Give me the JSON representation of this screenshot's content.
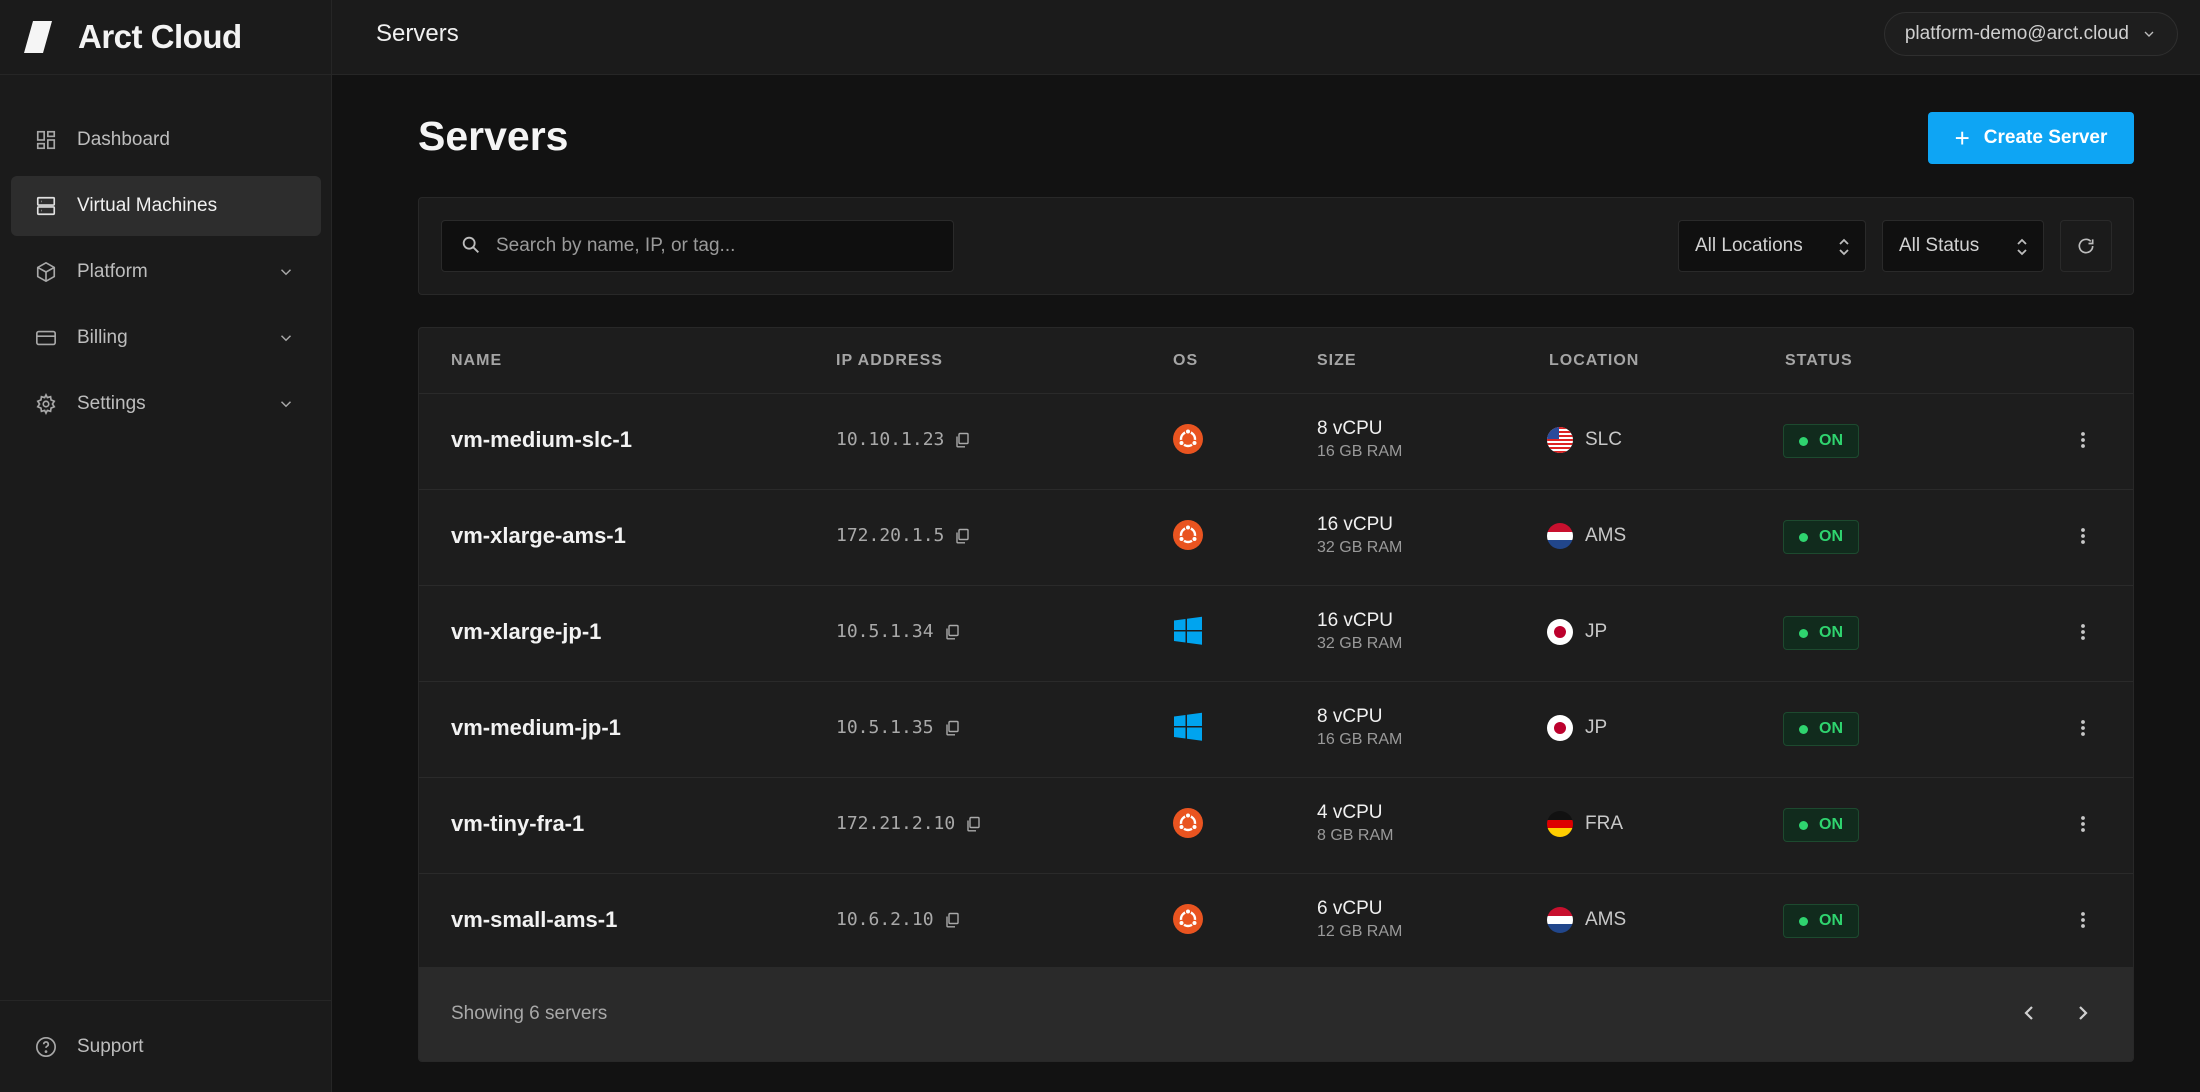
{
  "app": {
    "brand": "Arct Cloud",
    "header_title": "Servers",
    "account": "platform-demo@arct.cloud"
  },
  "sidebar": {
    "items": [
      {
        "label": "Dashboard",
        "icon": "dashboard-icon",
        "active": false
      },
      {
        "label": "Virtual Machines",
        "icon": "server-icon",
        "active": true
      },
      {
        "label": "Platform",
        "icon": "cube-icon",
        "expandable": true
      },
      {
        "label": "Billing",
        "icon": "credit-card-icon",
        "expandable": true
      },
      {
        "label": "Settings",
        "icon": "gear-icon",
        "expandable": true
      }
    ],
    "support": "Support"
  },
  "main": {
    "title": "Servers",
    "create_button": "Create Server",
    "search": {
      "placeholder": "Search by name, IP, or tag...",
      "value": ""
    },
    "location_filter": "All Locations",
    "status_filter": "All Status"
  },
  "table": {
    "columns": {
      "name": "NAME",
      "ip": "IP ADDRESS",
      "os": "OS",
      "size": "SIZE",
      "location": "LOCATION",
      "status": "STATUS"
    },
    "rows": [
      {
        "name": "vm-medium-slc-1",
        "ip": "10.10.1.23",
        "os": "ubuntu",
        "cpu": "8 vCPU",
        "ram": "16 GB RAM",
        "flag": "us",
        "location": "SLC",
        "status": "ON"
      },
      {
        "name": "vm-xlarge-ams-1",
        "ip": "172.20.1.5",
        "os": "ubuntu",
        "cpu": "16 vCPU",
        "ram": "32 GB RAM",
        "flag": "nl",
        "location": "AMS",
        "status": "ON"
      },
      {
        "name": "vm-xlarge-jp-1",
        "ip": "10.5.1.34",
        "os": "windows",
        "cpu": "16 vCPU",
        "ram": "32 GB RAM",
        "flag": "jp",
        "location": "JP",
        "status": "ON"
      },
      {
        "name": "vm-medium-jp-1",
        "ip": "10.5.1.35",
        "os": "windows",
        "cpu": "8 vCPU",
        "ram": "16 GB RAM",
        "flag": "jp",
        "location": "JP",
        "status": "ON"
      },
      {
        "name": "vm-tiny-fra-1",
        "ip": "172.21.2.10",
        "os": "ubuntu",
        "cpu": "4 vCPU",
        "ram": "8 GB RAM",
        "flag": "de",
        "location": "FRA",
        "status": "ON"
      },
      {
        "name": "vm-small-ams-1",
        "ip": "10.6.2.10",
        "os": "ubuntu",
        "cpu": "6 vCPU",
        "ram": "12 GB RAM",
        "flag": "nl",
        "location": "AMS",
        "status": "ON"
      }
    ],
    "footer": "Showing 6 servers"
  },
  "colors": {
    "accent": "#0ea5f4",
    "status_on": "#2fd46f",
    "ubuntu": "#e95420",
    "windows": "#00a4ef"
  }
}
